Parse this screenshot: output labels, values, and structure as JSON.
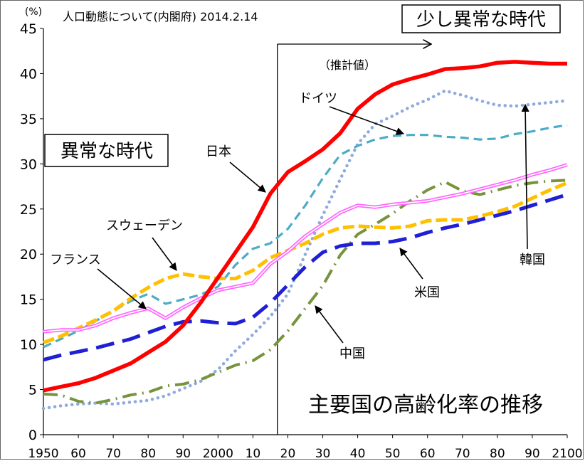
{
  "chart_data": {
    "type": "line",
    "title": "主要国の高齢化率の推移",
    "subtitle": "人口動態について(内閣府) 2014.2.14",
    "ylabel": "(%)",
    "ylim": [
      0,
      45
    ],
    "yticks": [
      0,
      5,
      10,
      15,
      20,
      25,
      30,
      35,
      40,
      45
    ],
    "xlim": [
      1950,
      2100
    ],
    "x_tick_values": [
      1950,
      1960,
      1970,
      1980,
      1990,
      2000,
      2010,
      2020,
      2030,
      2040,
      2050,
      2060,
      2070,
      2080,
      2090,
      2100
    ],
    "x_tick_labels": [
      "1950",
      "60",
      "70",
      "80",
      "90",
      "2000",
      "10",
      "20",
      "30",
      "40",
      "50",
      "60",
      "70",
      "80",
      "90",
      "2100"
    ],
    "grid": false,
    "legend": "none",
    "annotations": {
      "unusual_era_box": "異常な時代",
      "slightly_unusual_box": "少し異常な時代",
      "projection_label": "（推計値）",
      "projection_start_x": 2017
    },
    "series": [
      {
        "name": "日本",
        "color": "#ff0000",
        "style": "solid-thick",
        "x": [
          1950,
          1955,
          1960,
          1965,
          1970,
          1975,
          1980,
          1985,
          1990,
          1995,
          2000,
          2005,
          2010,
          2015,
          2020,
          2025,
          2030,
          2035,
          2040,
          2045,
          2050,
          2055,
          2060,
          2065,
          2070,
          2075,
          2080,
          2085,
          2090,
          2095,
          2100
        ],
        "y": [
          4.9,
          5.3,
          5.7,
          6.3,
          7.1,
          7.9,
          9.1,
          10.3,
          12.1,
          14.6,
          17.4,
          20.2,
          23.0,
          26.7,
          29.1,
          30.3,
          31.6,
          33.4,
          36.1,
          37.7,
          38.8,
          39.4,
          39.9,
          40.5,
          40.6,
          40.8,
          41.2,
          41.3,
          41.2,
          41.1,
          41.1
        ]
      },
      {
        "name": "ドイツ",
        "color": "#4bacc6",
        "style": "dashed",
        "x": [
          1950,
          1955,
          1960,
          1965,
          1970,
          1975,
          1980,
          1985,
          1990,
          1995,
          2000,
          2005,
          2010,
          2015,
          2020,
          2025,
          2030,
          2035,
          2040,
          2045,
          2050,
          2055,
          2060,
          2065,
          2070,
          2075,
          2080,
          2085,
          2090,
          2095,
          2100
        ],
        "y": [
          9.7,
          10.6,
          11.5,
          12.6,
          13.7,
          14.8,
          15.6,
          14.5,
          15.0,
          15.5,
          16.4,
          18.8,
          20.6,
          21.2,
          22.8,
          25.4,
          28.4,
          31.0,
          32.0,
          32.7,
          33.1,
          33.2,
          33.2,
          33.0,
          32.9,
          32.7,
          32.8,
          33.3,
          33.6,
          34.0,
          34.3
        ]
      },
      {
        "name": "韓国",
        "color": "#8faadc",
        "style": "dotted",
        "x": [
          1950,
          1955,
          1960,
          1965,
          1970,
          1975,
          1980,
          1985,
          1990,
          1995,
          2000,
          2005,
          2010,
          2015,
          2020,
          2025,
          2030,
          2035,
          2040,
          2045,
          2050,
          2055,
          2060,
          2065,
          2070,
          2075,
          2080,
          2085,
          2090,
          2095,
          2100
        ],
        "y": [
          2.9,
          3.2,
          3.4,
          3.5,
          3.4,
          3.6,
          3.8,
          4.3,
          5.1,
          5.9,
          7.2,
          9.3,
          11.1,
          13.1,
          15.6,
          20.0,
          24.3,
          28.3,
          32.2,
          34.4,
          35.3,
          36.3,
          37.1,
          38.1,
          37.6,
          37.0,
          36.5,
          36.4,
          36.6,
          36.8,
          37.0
        ]
      },
      {
        "name": "スウェーデン",
        "color": "#ffc000",
        "style": "dashed-thick",
        "x": [
          1950,
          1955,
          1960,
          1965,
          1970,
          1975,
          1980,
          1985,
          1990,
          1995,
          2000,
          2005,
          2010,
          2015,
          2020,
          2025,
          2030,
          2035,
          2040,
          2045,
          2050,
          2055,
          2060,
          2065,
          2070,
          2075,
          2080,
          2085,
          2090,
          2095,
          2100
        ],
        "y": [
          10.2,
          10.9,
          11.8,
          12.7,
          13.7,
          15.1,
          16.3,
          17.3,
          17.8,
          17.5,
          17.3,
          17.3,
          18.2,
          19.6,
          20.4,
          21.2,
          22.2,
          22.9,
          23.1,
          23.0,
          22.9,
          23.1,
          23.7,
          23.8,
          23.8,
          24.2,
          24.7,
          25.3,
          26.2,
          27.1,
          27.9
        ]
      },
      {
        "name": "フランス",
        "color": "#ff66ff",
        "style": "double",
        "x": [
          1950,
          1955,
          1960,
          1965,
          1970,
          1975,
          1980,
          1985,
          1990,
          1995,
          2000,
          2005,
          2010,
          2015,
          2020,
          2025,
          2030,
          2035,
          2040,
          2045,
          2050,
          2055,
          2060,
          2065,
          2070,
          2075,
          2080,
          2085,
          2090,
          2095,
          2100
        ],
        "y": [
          11.4,
          11.6,
          11.6,
          12.1,
          12.9,
          13.5,
          14.0,
          12.9,
          14.1,
          15.1,
          16.0,
          16.4,
          16.8,
          18.9,
          20.3,
          22.0,
          23.3,
          24.6,
          25.4,
          25.2,
          25.5,
          25.7,
          25.9,
          26.3,
          26.7,
          27.2,
          27.7,
          28.2,
          28.8,
          29.3,
          29.9
        ]
      },
      {
        "name": "米国",
        "color": "#1f1fd6",
        "style": "long-dash",
        "x": [
          1950,
          1955,
          1960,
          1965,
          1970,
          1975,
          1980,
          1985,
          1990,
          1995,
          2000,
          2005,
          2010,
          2015,
          2020,
          2025,
          2030,
          2035,
          2040,
          2045,
          2050,
          2055,
          2060,
          2065,
          2070,
          2075,
          2080,
          2085,
          2090,
          2095,
          2100
        ],
        "y": [
          8.3,
          8.8,
          9.2,
          9.6,
          10.1,
          10.6,
          11.3,
          12.0,
          12.5,
          12.6,
          12.4,
          12.3,
          13.0,
          14.6,
          16.6,
          18.6,
          20.2,
          20.9,
          21.2,
          21.2,
          21.4,
          21.8,
          22.4,
          22.9,
          23.3,
          23.8,
          24.3,
          24.8,
          25.4,
          26.0,
          26.6
        ]
      },
      {
        "name": "中国",
        "color": "#77933c",
        "style": "dash-dot",
        "x": [
          1950,
          1955,
          1960,
          1965,
          1970,
          1975,
          1980,
          1985,
          1990,
          1995,
          2000,
          2005,
          2010,
          2015,
          2020,
          2025,
          2030,
          2035,
          2040,
          2045,
          2050,
          2055,
          2060,
          2065,
          2070,
          2075,
          2080,
          2085,
          2090,
          2095,
          2100
        ],
        "y": [
          4.5,
          4.4,
          3.7,
          3.5,
          3.9,
          4.4,
          4.7,
          5.4,
          5.6,
          6.1,
          6.9,
          7.7,
          8.2,
          9.4,
          11.5,
          14.0,
          16.5,
          19.9,
          22.2,
          23.3,
          24.5,
          25.9,
          27.1,
          28.0,
          27.0,
          26.6,
          27.1,
          27.6,
          27.9,
          28.1,
          28.2
        ]
      }
    ],
    "series_labels": [
      {
        "series": "日本",
        "text": "日本"
      },
      {
        "series": "ドイツ",
        "text": "ドイツ"
      },
      {
        "series": "韓国",
        "text": "韓国"
      },
      {
        "series": "スウェーデン",
        "text": "スウェーデン"
      },
      {
        "series": "フランス",
        "text": "フランス"
      },
      {
        "series": "米国",
        "text": "米国"
      },
      {
        "series": "中国",
        "text": "中国"
      }
    ]
  }
}
